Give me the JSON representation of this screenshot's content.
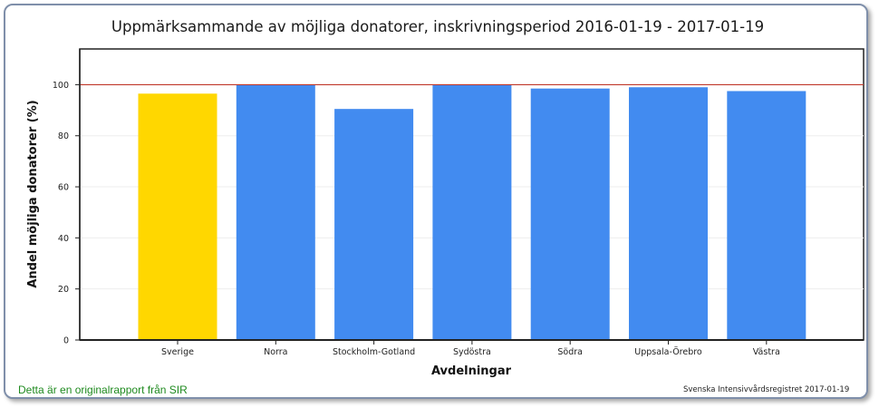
{
  "chart_data": {
    "type": "bar",
    "title": "Uppmärksammande av möjliga donatorer, inskrivningsperiod 2016-01-19 - 2017-01-19",
    "xlabel": "Avdelningar",
    "ylabel": "Andel möjliga donatorer (%)",
    "categories": [
      "Sverige",
      "Norra",
      "Stockholm-Gotland",
      "Sydöstra",
      "Södra",
      "Uppsala-Örebro",
      "Västra"
    ],
    "values": [
      96.5,
      100,
      90.5,
      100,
      98.5,
      99,
      97.5
    ],
    "bar_colors": [
      "#ffd700",
      "#428bf0",
      "#428bf0",
      "#428bf0",
      "#428bf0",
      "#428bf0",
      "#428bf0"
    ],
    "ylim": [
      0,
      114
    ],
    "yticks": [
      0,
      20,
      40,
      60,
      80,
      100
    ],
    "reference_line": {
      "value": 100,
      "color": "#c0392b"
    },
    "grid": true,
    "legend": "none"
  },
  "footer": {
    "left": "Detta är en originalrapport från SIR",
    "right": "Svenska Intensivvårdsregistret 2017-01-19"
  },
  "colors": {
    "highlight_bar": "#ffd700",
    "bar": "#428bf0",
    "reference_line": "#c0392b",
    "footer_left_text": "#1f8a1f"
  }
}
